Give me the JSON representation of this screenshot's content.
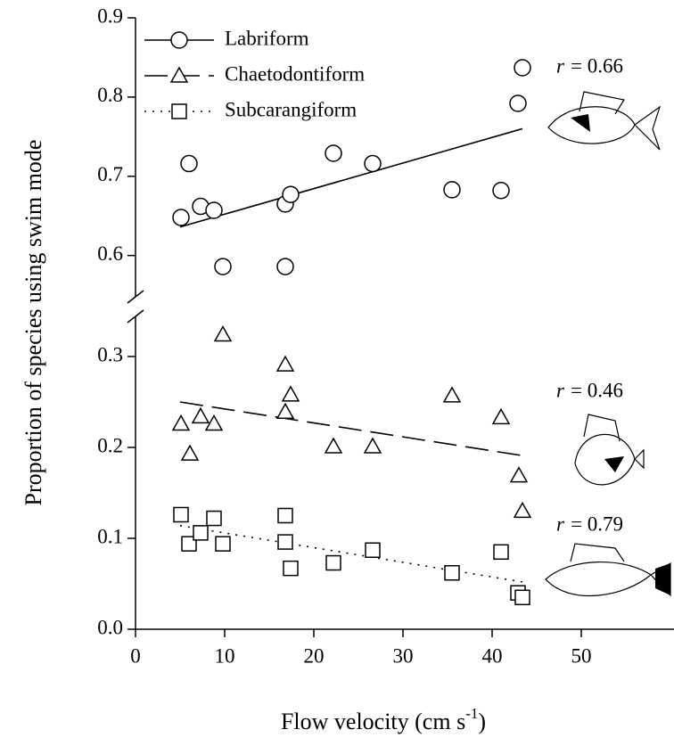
{
  "chart_data": {
    "type": "scatter",
    "xlabel": [
      "Flow velocity (cm s",
      "-1",
      ")"
    ],
    "ylabel": "Proportion of species using swim mode",
    "xlim": [
      0,
      60.4
    ],
    "xticks": [
      0,
      10,
      20,
      30,
      40,
      50
    ],
    "r_symbol": "r",
    "color": "#000000",
    "panels": [
      {
        "ylim": [
          0.54,
          0.9
        ],
        "yticks": [
          0.6,
          0.7,
          0.8,
          0.9
        ],
        "series": [
          {
            "name": "Labriform",
            "marker": "circle",
            "dash": "solid",
            "annotation": "= 0.66",
            "x": [
              5.1,
              6.0,
              7.3,
              8.8,
              9.8,
              16.8,
              16.8,
              17.4,
              22.2,
              26.6,
              35.5,
              41.0,
              42.9,
              43.4
            ],
            "values": [
              0.648,
              0.716,
              0.662,
              0.657,
              0.586,
              0.665,
              0.586,
              0.677,
              0.729,
              0.716,
              0.683,
              0.682,
              0.792,
              0.837
            ],
            "fit_x": [
              5,
              43.4
            ],
            "fit_values": [
              0.636,
              0.76
            ]
          }
        ]
      },
      {
        "ylim": [
          0,
          0.35
        ],
        "yticks": [
          {
            "value": 0,
            "label": "0.0"
          },
          0.1,
          0.2,
          0.3
        ],
        "series": [
          {
            "name": "Chaetodontiform",
            "marker": "triangle",
            "dash": "dashed",
            "annotation": "= 0.46",
            "x": [
              5.1,
              6.1,
              7.3,
              8.8,
              9.8,
              16.8,
              16.8,
              17.4,
              22.2,
              26.6,
              35.5,
              41.0,
              43.0,
              43.4
            ],
            "values": [
              0.226,
              0.193,
              0.234,
              0.226,
              0.324,
              0.291,
              0.239,
              0.258,
              0.201,
              0.201,
              0.257,
              0.233,
              0.169,
              0.13
            ],
            "fit_x": [
              5,
              43.4
            ],
            "fit_values": [
              0.25,
              0.191
            ]
          },
          {
            "name": "Subcarangiform",
            "marker": "square",
            "dash": "dotted",
            "annotation": "= 0.79",
            "x": [
              5.1,
              6.0,
              7.3,
              8.8,
              9.8,
              16.8,
              16.8,
              17.4,
              22.2,
              26.6,
              35.5,
              41.0,
              42.9,
              43.4
            ],
            "values": [
              0.126,
              0.094,
              0.106,
              0.122,
              0.094,
              0.125,
              0.096,
              0.067,
              0.073,
              0.087,
              0.062,
              0.085,
              0.04,
              0.035
            ],
            "fit_x": [
              5,
              43.4
            ],
            "fit_values": [
              0.114,
              0.052
            ]
          }
        ]
      }
    ]
  }
}
